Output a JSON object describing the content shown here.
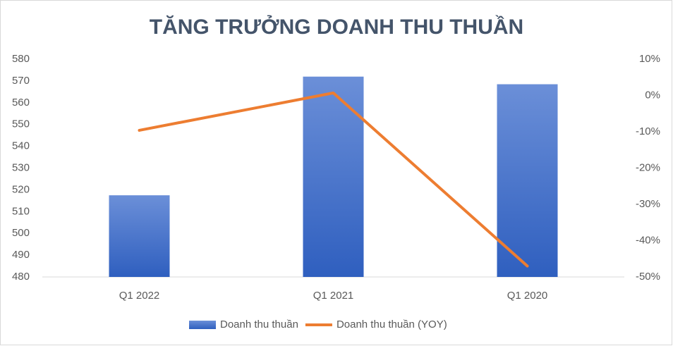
{
  "chart_data": {
    "type": "bar",
    "title": "TĂNG TRƯỞNG DOANH THU THUẦN",
    "categories": [
      "Q1 2022",
      "Q1 2021",
      "Q1 2020"
    ],
    "series": [
      {
        "name": "Doanh thu thuần",
        "type": "bar",
        "color": "#4472c4",
        "values": [
          517.5,
          572,
          568.5
        ]
      },
      {
        "name": "Doanh thu thuần (YOY)",
        "type": "line",
        "axis": "y2",
        "color": "#ed7d31",
        "values": [
          -9.6,
          0.7,
          -47
        ]
      }
    ],
    "ylim": [
      480,
      580
    ],
    "yticks": [
      480,
      490,
      500,
      510,
      520,
      530,
      540,
      550,
      560,
      570,
      580
    ],
    "y2lim": [
      -50,
      10
    ],
    "y2ticks": [
      {
        "value": -50,
        "label": "-50%"
      },
      {
        "value": -40,
        "label": "-40%"
      },
      {
        "value": -30,
        "label": "-30%"
      },
      {
        "value": -20,
        "label": "-20%"
      },
      {
        "value": -10,
        "label": "-10%"
      },
      {
        "value": 0,
        "label": "0%"
      },
      {
        "value": 10,
        "label": "10%"
      }
    ],
    "legend": "bottom",
    "grid": false
  }
}
